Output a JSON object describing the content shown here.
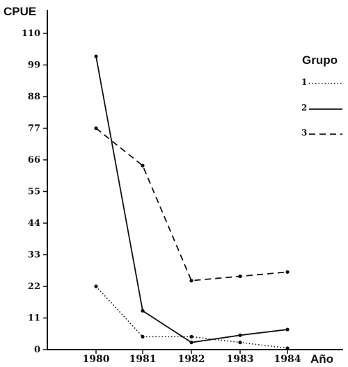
{
  "chart_data": {
    "type": "line",
    "title": "",
    "xlabel": "Año",
    "ylabel": "CPUE",
    "x": [
      "1980",
      "1981",
      "1982",
      "1983",
      "1984"
    ],
    "yticks": [
      "0",
      "11",
      "22",
      "33",
      "44",
      "55",
      "66",
      "77",
      "88",
      "99",
      "110"
    ],
    "ylim": [
      0,
      115
    ],
    "grid": false,
    "legend_title": "Grupo",
    "legend_position": "right",
    "series": [
      {
        "name": "1",
        "style": "dotted",
        "color": "#111111",
        "values": [
          22,
          4.5,
          4.5,
          2.5,
          0.5
        ]
      },
      {
        "name": "2",
        "style": "solid",
        "color": "#111111",
        "values": [
          102,
          13.5,
          2.5,
          5,
          7
        ]
      },
      {
        "name": "3",
        "style": "dashed",
        "color": "#111111",
        "values": [
          77,
          64,
          24,
          25.5,
          27
        ]
      }
    ]
  }
}
